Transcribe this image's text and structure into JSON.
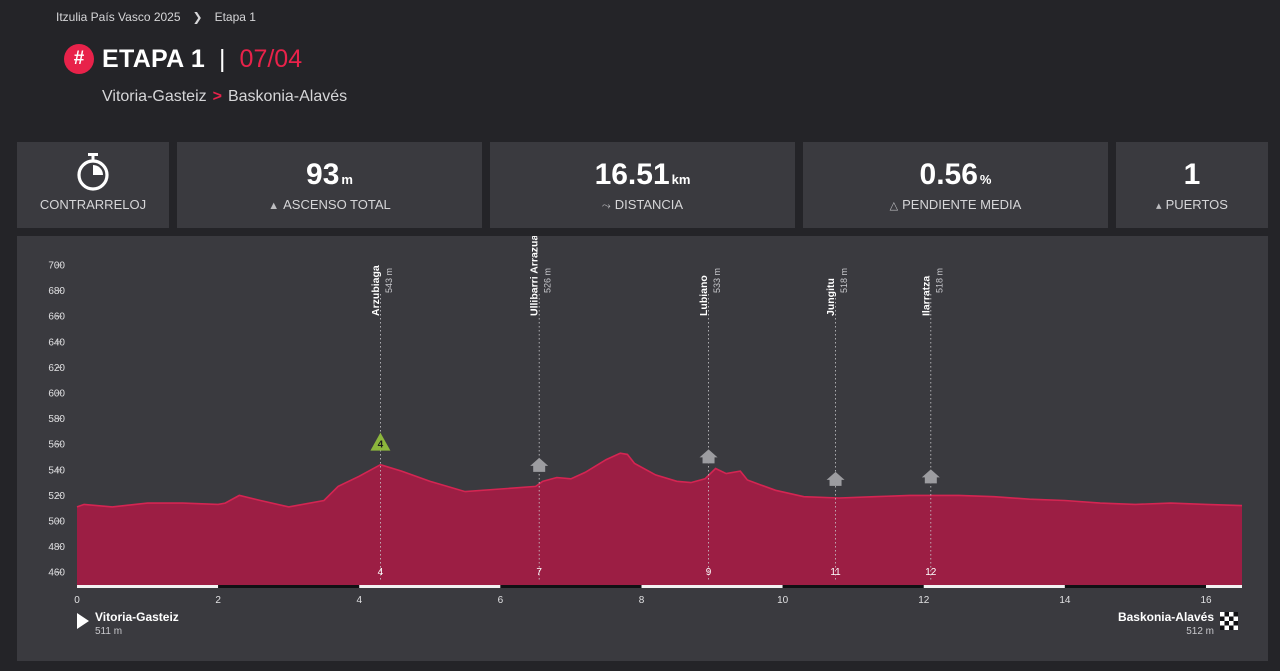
{
  "breadcrumb": {
    "parent": "Itzulia País Vasco 2025",
    "current": "Etapa 1"
  },
  "header": {
    "icon": "#",
    "title": "ETAPA 1",
    "date": "07/04"
  },
  "route": {
    "start": "Vitoria-Gasteiz",
    "end": "Baskonia-Alavés"
  },
  "stats": {
    "type": {
      "label": "CONTRARRELOJ"
    },
    "ascent": {
      "value": "93",
      "unit": "m",
      "label": "ASCENSO TOTAL"
    },
    "distance": {
      "value": "16.51",
      "unit": "km",
      "label": "DISTANCIA"
    },
    "gradient": {
      "value": "0.56",
      "unit": "%",
      "label": "PENDIENTE MEDIA"
    },
    "climbs": {
      "value": "1",
      "label": "PUERTOS"
    }
  },
  "colors": {
    "accent": "#e8224a",
    "profile_fill": "#9c1e44",
    "profile_line": "#d42552",
    "climb_badge": "#8cb63c"
  },
  "chart_data": {
    "type": "area",
    "xlim": [
      0,
      16.51
    ],
    "ylim": [
      450,
      700
    ],
    "x_ticks": [
      0,
      2,
      4,
      6,
      8,
      10,
      12,
      14,
      16
    ],
    "y_ticks": [
      460,
      480,
      500,
      520,
      540,
      560,
      580,
      600,
      620,
      640,
      660,
      680,
      700
    ],
    "x": [
      0,
      0.1,
      0.5,
      1,
      1.5,
      2,
      2.1,
      2.3,
      2.6,
      3,
      3.5,
      3.7,
      4,
      4.3,
      4.6,
      5,
      5.5,
      6,
      6.5,
      6.6,
      6.8,
      7,
      7.2,
      7.5,
      7.7,
      7.8,
      7.9,
      8.2,
      8.5,
      8.7,
      8.9,
      9.05,
      9.2,
      9.4,
      9.5,
      9.7,
      9.9,
      10.3,
      10.8,
      11.3,
      11.8,
      12,
      12.5,
      13,
      13.5,
      14,
      14.5,
      15,
      15.5,
      16,
      16.51
    ],
    "y": [
      511,
      513,
      511,
      514,
      514,
      513,
      514,
      520,
      516,
      511,
      516,
      527,
      535,
      544,
      539,
      531,
      523,
      525,
      527,
      531,
      534,
      533,
      538,
      548,
      553,
      552,
      545,
      536,
      531,
      530,
      533,
      541,
      537,
      539,
      532,
      528,
      524,
      519,
      518,
      519,
      520,
      520,
      520,
      519,
      517,
      516,
      514,
      513,
      514,
      513,
      512
    ],
    "waypoints": [
      {
        "name": "Arzubiaga",
        "alt": "543 m",
        "km": 4.3,
        "km_label": "4",
        "marker": "4",
        "marker_kind": "climb"
      },
      {
        "name": "Ullibarri Arrazua",
        "alt": "526 m",
        "km": 6.55,
        "km_label": "7",
        "marker_kind": "town"
      },
      {
        "name": "Lubiano",
        "alt": "533 m",
        "km": 8.95,
        "km_label": "9",
        "marker_kind": "town"
      },
      {
        "name": "Jungitu",
        "alt": "518 m",
        "km": 10.75,
        "km_label": "11",
        "marker_kind": "town"
      },
      {
        "name": "Ilarratza",
        "alt": "518 m",
        "km": 12.1,
        "km_label": "12",
        "marker_kind": "town"
      }
    ],
    "start": {
      "name": "Vitoria-Gasteiz",
      "alt": "511 m"
    },
    "finish": {
      "name": "Baskonia-Alavés",
      "alt": "512 m"
    }
  }
}
